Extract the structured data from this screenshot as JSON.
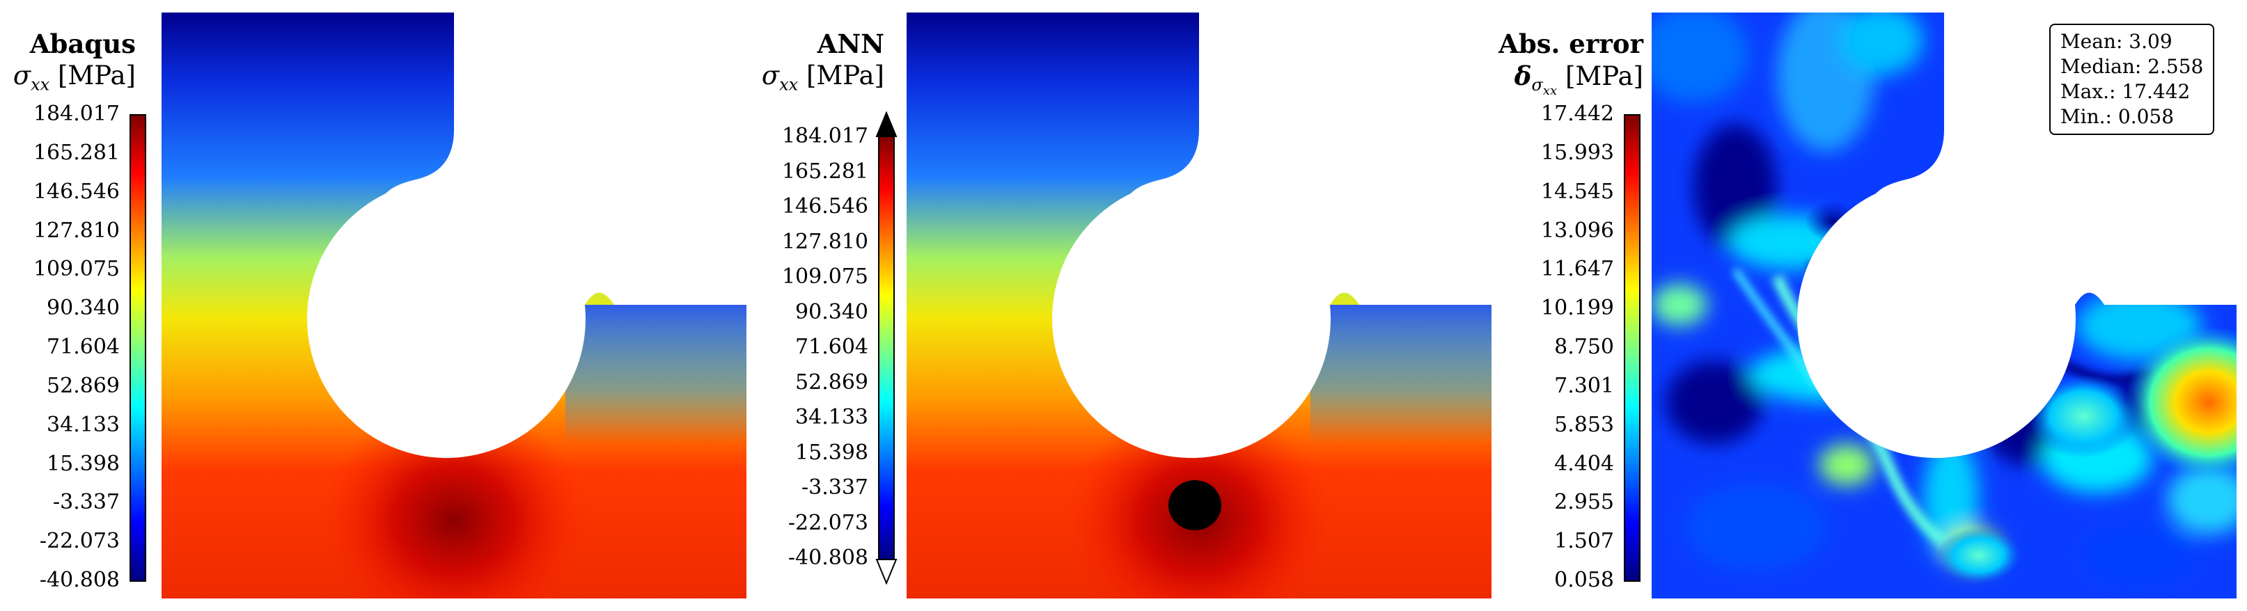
{
  "panels": [
    {
      "id": "abaqus",
      "title": "Abaqus",
      "symbol": "σ",
      "subscript": "xx",
      "unit": "[MPa]",
      "ticks": [
        "184.017",
        "165.281",
        "146.546",
        "127.810",
        "109.075",
        "90.340",
        "71.604",
        "52.869",
        "34.133",
        "15.398",
        "-3.337",
        "-22.073",
        "-40.808"
      ],
      "extend_arrows": false
    },
    {
      "id": "ann",
      "title": "ANN",
      "symbol": "σ",
      "subscript": "xx",
      "unit": "[MPa]",
      "ticks": [
        "184.017",
        "165.281",
        "146.546",
        "127.810",
        "109.075",
        "90.340",
        "71.604",
        "52.869",
        "34.133",
        "15.398",
        "-3.337",
        "-22.073",
        "-40.808"
      ],
      "extend_arrows": true
    },
    {
      "id": "abs-error",
      "title": "Abs. error",
      "symbol": "δ",
      "subscript": "σxx",
      "unit": "[MPa]",
      "ticks": [
        "17.442",
        "15.993",
        "14.545",
        "13.096",
        "11.647",
        "10.199",
        "8.750",
        "7.301",
        "5.853",
        "4.404",
        "2.955",
        "1.507",
        "0.058"
      ],
      "extend_arrows": false
    }
  ],
  "stats": {
    "mean": "Mean: 3.09",
    "median": "Median: 2.558",
    "max": "Max.: 17.442",
    "min": "Min.: 0.058"
  },
  "colormap": [
    "#00007f",
    "#0000ff",
    "#0080ff",
    "#00ffff",
    "#80ff80",
    "#ffff00",
    "#ff8000",
    "#ff0000",
    "#7f0000"
  ]
}
